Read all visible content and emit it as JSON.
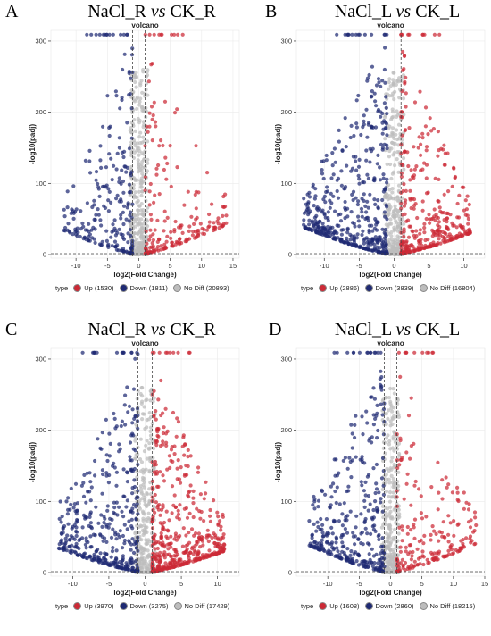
{
  "colors": {
    "up": "#cc2a36",
    "down": "#1f2a73",
    "nodiff": "#bdbdbd"
  },
  "chart_data": [
    {
      "letter": "A",
      "title_left": "NaCl_R",
      "title_vs": "vs",
      "title_right": "CK_R",
      "type": "scatter",
      "subtitle": "volcano",
      "xlabel": "log2(Fold Change)",
      "ylabel": "-log10(padj)",
      "xlim": [
        -14,
        16
      ],
      "ylim": [
        -5,
        315
      ],
      "xticks": [
        -10,
        -5,
        0,
        5,
        10,
        15
      ],
      "yticks": [
        0,
        100,
        200,
        300
      ],
      "legend_title": "type",
      "series": [
        {
          "name": "Up (1530)",
          "key": "up",
          "count": 1530,
          "x_max": 14
        },
        {
          "name": "Down (1811)",
          "key": "down",
          "count": 1811,
          "x_min": -12
        },
        {
          "name": "No Diff (20893)",
          "key": "nodiff",
          "count": 20893
        }
      ]
    },
    {
      "letter": "B",
      "title_left": "NaCl_L",
      "title_vs": "vs",
      "title_right": "CK_L",
      "type": "scatter",
      "subtitle": "volcano",
      "xlabel": "log2(Fold Change)",
      "ylabel": "-log10(padj)",
      "xlim": [
        -14,
        13
      ],
      "ylim": [
        -5,
        315
      ],
      "xticks": [
        -10,
        -5,
        0,
        5,
        10
      ],
      "yticks": [
        0,
        100,
        200,
        300
      ],
      "legend_title": "type",
      "series": [
        {
          "name": "Up (2886)",
          "key": "up",
          "count": 2886,
          "x_max": 11
        },
        {
          "name": "Down (3839)",
          "key": "down",
          "count": 3839,
          "x_min": -13
        },
        {
          "name": "No Diff (16804)",
          "key": "nodiff",
          "count": 16804
        }
      ]
    },
    {
      "letter": "C",
      "title_left": "NaCl_R",
      "title_vs": "vs",
      "title_right": "CK_R",
      "type": "scatter",
      "subtitle": "volcano",
      "xlabel": "log2(Fold Change)",
      "ylabel": "-log10(padj)",
      "xlim": [
        -13,
        13
      ],
      "ylim": [
        -5,
        315
      ],
      "xticks": [
        -10,
        -5,
        0,
        5,
        10
      ],
      "yticks": [
        0,
        100,
        200,
        300
      ],
      "legend_title": "type",
      "series": [
        {
          "name": "Up (3970)",
          "key": "up",
          "count": 3970,
          "x_max": 11
        },
        {
          "name": "Down (3275)",
          "key": "down",
          "count": 3275,
          "x_min": -12
        },
        {
          "name": "No Diff (17429)",
          "key": "nodiff",
          "count": 17429
        }
      ]
    },
    {
      "letter": "D",
      "title_left": "NaCl_L",
      "title_vs": "vs",
      "title_right": "CK_L",
      "type": "scatter",
      "subtitle": "volcano",
      "xlabel": "log2(Fold Change)",
      "ylabel": "-log10(padj)",
      "xlim": [
        -15,
        15
      ],
      "ylim": [
        -5,
        315
      ],
      "xticks": [
        -10,
        -5,
        0,
        5,
        10,
        15
      ],
      "yticks": [
        0,
        100,
        200,
        300
      ],
      "legend_title": "type",
      "series": [
        {
          "name": "Up (1608)",
          "key": "up",
          "count": 1608,
          "x_max": 14
        },
        {
          "name": "Down (2860)",
          "key": "down",
          "count": 2860,
          "x_min": -13
        },
        {
          "name": "No Diff (18215)",
          "key": "nodiff",
          "count": 18215
        }
      ]
    }
  ]
}
